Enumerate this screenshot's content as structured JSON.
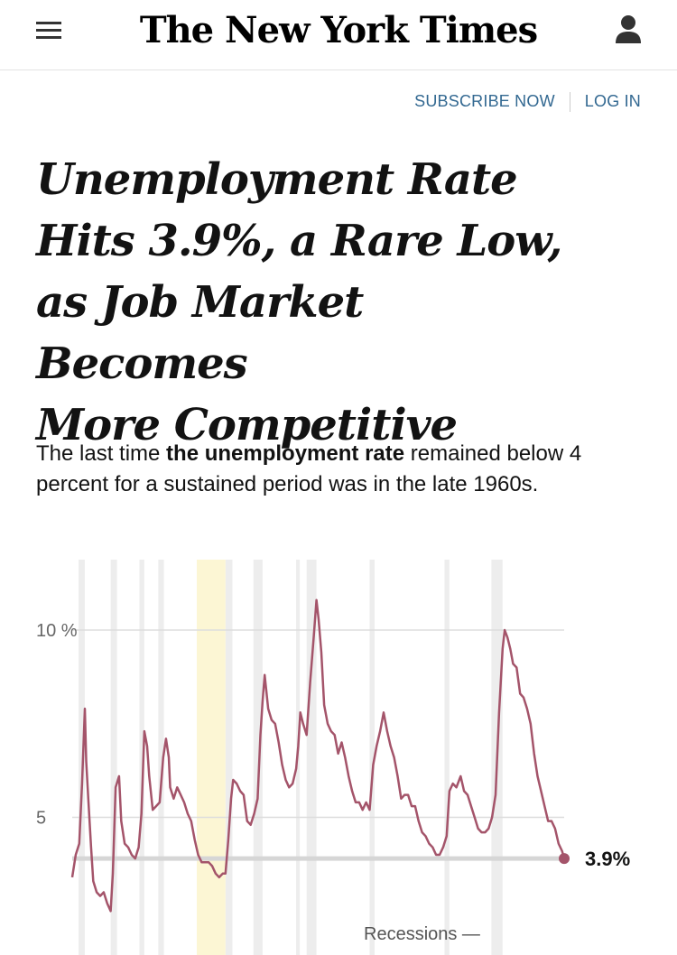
{
  "header": {
    "logo": "The New York Times",
    "menu_icon": "hamburger-menu-icon",
    "account_icon": "user-account-icon"
  },
  "nav": {
    "subscribe": "SUBSCRIBE NOW",
    "login": "LOG IN"
  },
  "headline": {
    "lines": [
      "Unemployment Rate",
      "Hits 3.9%, a Rare Low,",
      "as Job Market Becomes",
      "More Competitive"
    ]
  },
  "summary": {
    "before": "The last time ",
    "bold": "the unemployment rate",
    "after": " remained below 4 percent for a sustained period was in the late 1960s."
  },
  "colors": {
    "line": "#a4546a",
    "recession": "#ededed",
    "highlight": "#fcf6d4",
    "link": "#326891"
  },
  "chart_data": {
    "type": "line",
    "ylim": [
      2,
      12
    ],
    "xlim": [
      1948,
      2018.3
    ],
    "yticks": [
      {
        "value": 10,
        "label": "10 %"
      },
      {
        "value": 5,
        "label": "5"
      }
    ],
    "end_label": "3.9%",
    "reference_value": 3.9,
    "legend_label": "Recessions —",
    "highlight_band": [
      1965.8,
      1969.9
    ],
    "recessions": [
      [
        1948.9,
        1949.8
      ],
      [
        1953.5,
        1954.4
      ],
      [
        1957.6,
        1958.3
      ],
      [
        1960.3,
        1961.1
      ],
      [
        1969.9,
        1970.9
      ],
      [
        1973.9,
        1975.2
      ],
      [
        1980.0,
        1980.5
      ],
      [
        1981.5,
        1982.9
      ],
      [
        1990.5,
        1991.2
      ],
      [
        2001.2,
        2001.9
      ],
      [
        2007.9,
        2009.5
      ]
    ],
    "series": [
      {
        "x": [
          1948.0,
          1948.5,
          1949.0,
          1949.4,
          1949.8,
          1950.0,
          1950.3,
          1950.7,
          1951.0,
          1951.5,
          1952.0,
          1952.5,
          1953.0,
          1953.5,
          1953.8,
          1954.2,
          1954.7,
          1955.0,
          1955.5,
          1956.0,
          1956.5,
          1957.0,
          1957.5,
          1957.9,
          1958.3,
          1958.7,
          1959.0,
          1959.5,
          1960.0,
          1960.5,
          1961.0,
          1961.4,
          1961.8,
          1962.0,
          1962.5,
          1963.0,
          1963.5,
          1964.0,
          1964.5,
          1965.0,
          1965.5,
          1966.0,
          1966.5,
          1967.0,
          1967.5,
          1968.0,
          1968.5,
          1969.0,
          1969.5,
          1969.9,
          1970.3,
          1970.7,
          1971.0,
          1971.5,
          1972.0,
          1972.5,
          1973.0,
          1973.5,
          1974.0,
          1974.5,
          1974.9,
          1975.2,
          1975.5,
          1976.0,
          1976.5,
          1977.0,
          1977.5,
          1978.0,
          1978.5,
          1979.0,
          1979.5,
          1980.0,
          1980.3,
          1980.6,
          1981.0,
          1981.5,
          1982.0,
          1982.5,
          1982.9,
          1983.2,
          1983.6,
          1984.0,
          1984.5,
          1985.0,
          1985.5,
          1986.0,
          1986.5,
          1987.0,
          1987.5,
          1988.0,
          1988.5,
          1989.0,
          1989.5,
          1990.0,
          1990.5,
          1991.0,
          1991.5,
          1992.0,
          1992.5,
          1993.0,
          1993.5,
          1994.0,
          1994.5,
          1995.0,
          1995.5,
          1996.0,
          1996.5,
          1997.0,
          1997.5,
          1998.0,
          1998.5,
          1999.0,
          1999.5,
          2000.0,
          2000.5,
          2001.0,
          2001.5,
          2001.9,
          2002.4,
          2002.9,
          2003.5,
          2004.0,
          2004.5,
          2005.0,
          2005.5,
          2006.0,
          2006.5,
          2007.0,
          2007.5,
          2008.0,
          2008.5,
          2009.0,
          2009.5,
          2009.8,
          2010.2,
          2010.6,
          2011.0,
          2011.5,
          2012.0,
          2012.5,
          2013.0,
          2013.5,
          2014.0,
          2014.5,
          2015.0,
          2015.5,
          2016.0,
          2016.5,
          2017.0,
          2017.5,
          2018.0,
          2018.3
        ],
        "y": [
          3.4,
          4.0,
          4.3,
          5.9,
          7.9,
          6.5,
          5.5,
          4.2,
          3.3,
          3.0,
          2.9,
          3.0,
          2.7,
          2.5,
          3.5,
          5.8,
          6.1,
          4.9,
          4.3,
          4.2,
          4.0,
          3.9,
          4.2,
          5.1,
          7.3,
          6.9,
          6.1,
          5.2,
          5.3,
          5.4,
          6.6,
          7.1,
          6.6,
          5.8,
          5.5,
          5.8,
          5.6,
          5.4,
          5.1,
          4.9,
          4.4,
          4.0,
          3.8,
          3.8,
          3.8,
          3.7,
          3.5,
          3.4,
          3.5,
          3.5,
          4.4,
          5.5,
          6.0,
          5.9,
          5.7,
          5.6,
          4.9,
          4.8,
          5.1,
          5.5,
          7.2,
          8.1,
          8.8,
          7.9,
          7.6,
          7.5,
          7.0,
          6.4,
          6.0,
          5.8,
          5.9,
          6.3,
          6.9,
          7.8,
          7.5,
          7.2,
          8.6,
          9.8,
          10.8,
          10.3,
          9.4,
          8.0,
          7.5,
          7.3,
          7.2,
          6.7,
          7.0,
          6.6,
          6.1,
          5.7,
          5.4,
          5.4,
          5.2,
          5.4,
          5.2,
          6.4,
          6.9,
          7.3,
          7.8,
          7.3,
          6.9,
          6.6,
          6.1,
          5.5,
          5.6,
          5.6,
          5.3,
          5.3,
          4.9,
          4.6,
          4.5,
          4.3,
          4.2,
          4.0,
          4.0,
          4.2,
          4.5,
          5.7,
          5.9,
          5.8,
          6.1,
          5.7,
          5.6,
          5.3,
          5.0,
          4.7,
          4.6,
          4.6,
          4.7,
          5.0,
          5.6,
          7.8,
          9.5,
          10.0,
          9.8,
          9.5,
          9.1,
          9.0,
          8.3,
          8.2,
          7.9,
          7.5,
          6.7,
          6.1,
          5.7,
          5.3,
          4.9,
          4.9,
          4.7,
          4.3,
          4.1,
          3.9
        ]
      }
    ]
  }
}
